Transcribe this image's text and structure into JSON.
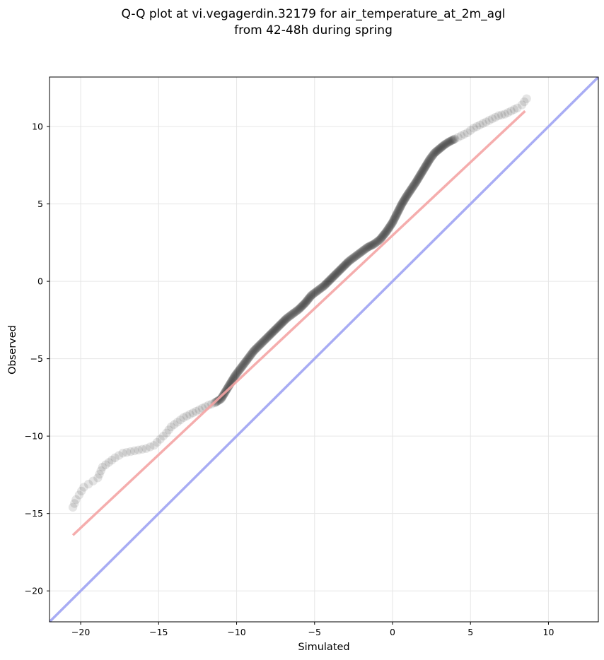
{
  "chart_data": {
    "type": "scatter",
    "title": "Q-Q plot at vi.vegagerdin.32179 for air_temperature_at_2m_agl",
    "subtitle": "from 42-48h during spring",
    "xlabel": "Simulated",
    "ylabel": "Observed",
    "xlim": [
      -22,
      13.2
    ],
    "ylim": [
      -22,
      13.2
    ],
    "grid": true,
    "x_ticks": [
      -20,
      -15,
      -10,
      -5,
      0,
      5,
      10
    ],
    "y_ticks": [
      -20,
      -15,
      -10,
      -5,
      0,
      5,
      10
    ],
    "x_tick_labels": [
      "−20",
      "−15",
      "−10",
      "−5",
      "0",
      "5",
      "10"
    ],
    "y_tick_labels": [
      "−20",
      "−15",
      "−10",
      "−5",
      "0",
      "5",
      "10"
    ],
    "colors": {
      "points": "#000000",
      "fit_line": "#f4a4a4",
      "identity_line": "#a8acf4",
      "grid": "#e6e6e6"
    },
    "fit_line": {
      "x": [
        -20.5,
        8.5
      ],
      "y": [
        -16.4,
        11.0
      ]
    },
    "identity_line": {
      "x": [
        -22,
        13.2
      ],
      "y": [
        -22,
        13.2
      ]
    },
    "quantile_curve": {
      "x": [
        -20.5,
        -20.3,
        -20.1,
        -19.8,
        -19.5,
        -19.2,
        -18.9,
        -18.6,
        -18.2,
        -17.8,
        -17.3,
        -16.8,
        -16.3,
        -15.8,
        -15.3,
        -14.9,
        -14.5,
        -14.2,
        -13.8,
        -13.4,
        -13.0,
        -12.6,
        -12.2,
        -11.8,
        -11.4,
        -11.0,
        -10.7,
        -10.4,
        -10.1,
        -9.8,
        -9.5,
        -9.2,
        -8.9,
        -8.6,
        -8.3,
        -8.0,
        -7.6,
        -7.2,
        -6.8,
        -6.4,
        -6.0,
        -5.6,
        -5.2,
        -4.8,
        -4.4,
        -4.0,
        -3.6,
        -3.2,
        -2.8,
        -2.4,
        -2.0,
        -1.6,
        -1.2,
        -0.8,
        -0.4,
        0.0,
        0.3,
        0.6,
        0.9,
        1.2,
        1.5,
        1.8,
        2.1,
        2.4,
        2.7,
        3.0,
        3.3,
        3.6,
        4.0,
        4.4,
        4.8,
        5.2,
        5.6,
        6.0,
        6.4,
        6.8,
        7.2,
        7.6,
        8.0,
        8.3,
        8.6
      ],
      "y": [
        -14.6,
        -14.1,
        -13.8,
        -13.3,
        -13.1,
        -12.9,
        -12.7,
        -12.0,
        -11.7,
        -11.4,
        -11.1,
        -11.0,
        -10.9,
        -10.8,
        -10.6,
        -10.2,
        -9.8,
        -9.4,
        -9.1,
        -8.8,
        -8.6,
        -8.4,
        -8.2,
        -8.0,
        -7.85,
        -7.6,
        -7.1,
        -6.6,
        -6.1,
        -5.7,
        -5.3,
        -4.9,
        -4.5,
        -4.2,
        -3.9,
        -3.6,
        -3.2,
        -2.8,
        -2.4,
        -2.1,
        -1.8,
        -1.4,
        -0.9,
        -0.6,
        -0.3,
        0.1,
        0.5,
        0.9,
        1.3,
        1.6,
        1.9,
        2.2,
        2.4,
        2.7,
        3.2,
        3.8,
        4.4,
        5.0,
        5.5,
        5.95,
        6.4,
        6.9,
        7.4,
        7.9,
        8.3,
        8.55,
        8.8,
        9.0,
        9.2,
        9.4,
        9.6,
        9.9,
        10.1,
        10.3,
        10.5,
        10.7,
        10.8,
        11.0,
        11.2,
        11.4,
        11.8
      ]
    }
  }
}
